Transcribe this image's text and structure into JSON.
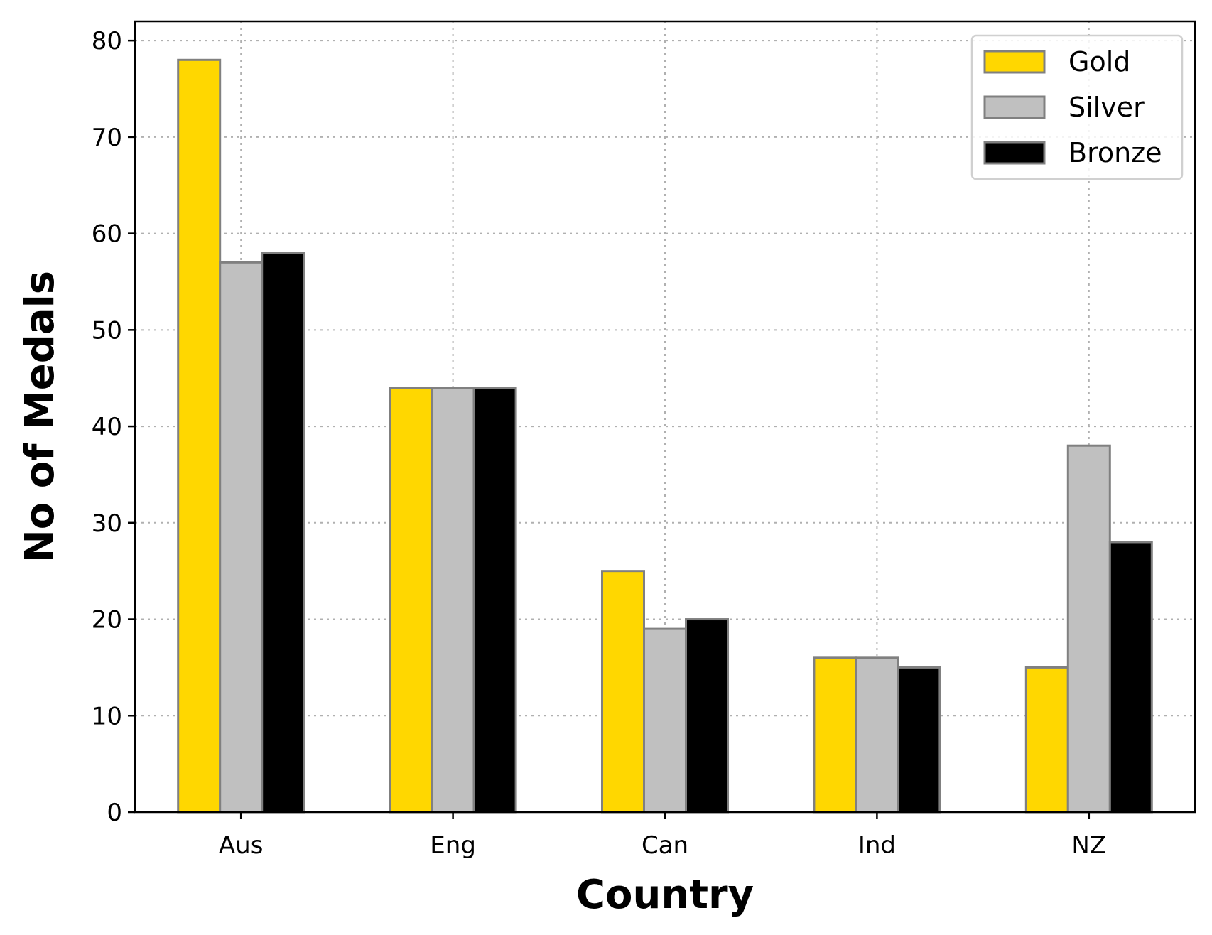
{
  "chart_data": {
    "type": "bar",
    "categories": [
      "Aus",
      "Eng",
      "Can",
      "Ind",
      "NZ"
    ],
    "series": [
      {
        "name": "Gold",
        "values": [
          78,
          44,
          25,
          16,
          15
        ],
        "color": "#FFD700"
      },
      {
        "name": "Silver",
        "values": [
          57,
          44,
          19,
          16,
          38
        ],
        "color": "#C0C0C0"
      },
      {
        "name": "Bronze",
        "values": [
          58,
          44,
          20,
          15,
          28
        ],
        "color": "#000000"
      }
    ],
    "bar_edge_color": "#808080",
    "xlabel": "Country",
    "ylabel": "No of Medals",
    "ylim": [
      0,
      82
    ],
    "yticks": [
      0,
      10,
      20,
      30,
      40,
      50,
      60,
      70,
      80
    ],
    "grid": true,
    "legend_position": "top-right"
  }
}
